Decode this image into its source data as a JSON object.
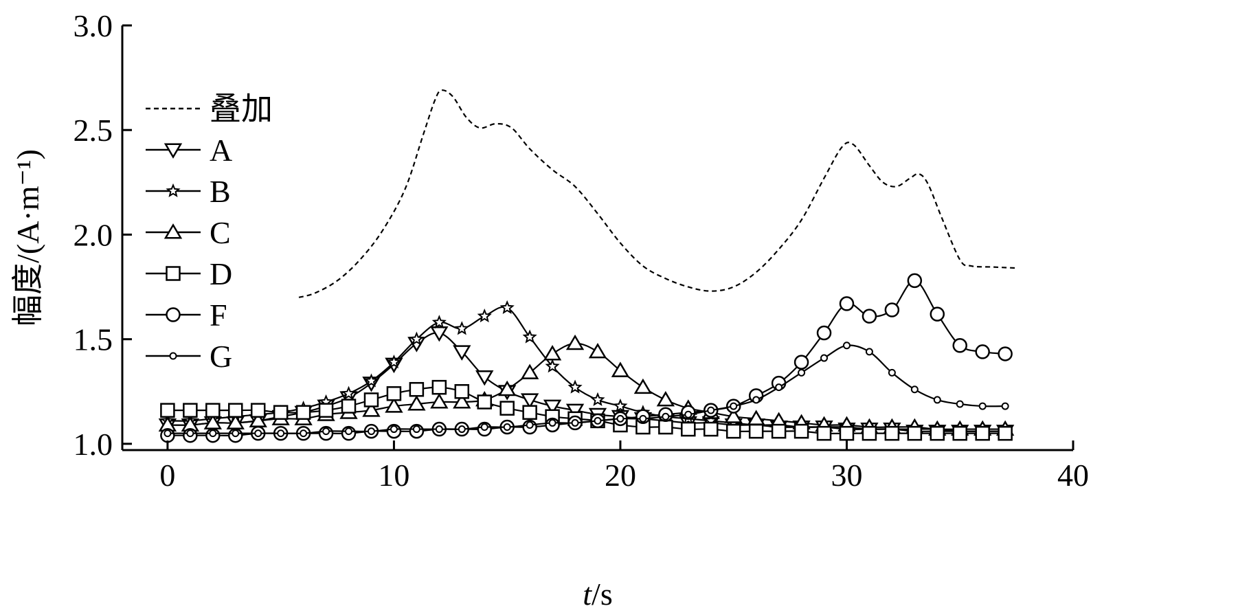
{
  "chart_data": {
    "type": "line",
    "xlabel_italic": "t",
    "xlabel_unit": "/s",
    "ylabel": "幅度/(A·m⁻¹)",
    "xlim": [
      -2,
      40
    ],
    "ylim": [
      0.97,
      3.0
    ],
    "x_ticks": [
      0,
      10,
      20,
      30,
      40
    ],
    "y_ticks": [
      1.0,
      1.5,
      2.0,
      2.5,
      3.0
    ],
    "y_tick_labels": [
      "1.0",
      "1.5",
      "2.0",
      "2.5",
      "3.0"
    ],
    "grid": false,
    "legend_position": "top-left",
    "series": [
      {
        "name": "叠加",
        "marker": "none",
        "dashed": true,
        "points": [
          [
            5.8,
            1.7
          ],
          [
            6.5,
            1.72
          ],
          [
            7.5,
            1.78
          ],
          [
            8.5,
            1.88
          ],
          [
            9.5,
            2.02
          ],
          [
            10.5,
            2.22
          ],
          [
            11.3,
            2.48
          ],
          [
            11.8,
            2.64
          ],
          [
            12.1,
            2.69
          ],
          [
            12.6,
            2.66
          ],
          [
            13.2,
            2.56
          ],
          [
            13.8,
            2.51
          ],
          [
            14.5,
            2.53
          ],
          [
            15.2,
            2.51
          ],
          [
            16,
            2.41
          ],
          [
            17,
            2.31
          ],
          [
            18,
            2.23
          ],
          [
            19,
            2.1
          ],
          [
            20,
            1.96
          ],
          [
            21,
            1.85
          ],
          [
            22,
            1.79
          ],
          [
            23,
            1.75
          ],
          [
            24,
            1.73
          ],
          [
            25,
            1.75
          ],
          [
            26,
            1.82
          ],
          [
            27,
            1.93
          ],
          [
            28,
            2.07
          ],
          [
            29,
            2.27
          ],
          [
            29.8,
            2.42
          ],
          [
            30.3,
            2.43
          ],
          [
            31,
            2.33
          ],
          [
            31.6,
            2.25
          ],
          [
            32.2,
            2.23
          ],
          [
            32.8,
            2.27
          ],
          [
            33.2,
            2.29
          ],
          [
            33.6,
            2.24
          ],
          [
            34.2,
            2.08
          ],
          [
            35,
            1.88
          ],
          [
            35.5,
            1.85
          ],
          [
            36.5,
            1.845
          ],
          [
            37.5,
            1.84
          ]
        ]
      },
      {
        "name": "A",
        "marker": "triangle-down",
        "points": [
          [
            0,
            1.09
          ],
          [
            1,
            1.09
          ],
          [
            2,
            1.1
          ],
          [
            3,
            1.1
          ],
          [
            4,
            1.11
          ],
          [
            5,
            1.13
          ],
          [
            6,
            1.15
          ],
          [
            7,
            1.18
          ],
          [
            8,
            1.22
          ],
          [
            9,
            1.29
          ],
          [
            10,
            1.38
          ],
          [
            11,
            1.48
          ],
          [
            12,
            1.53
          ],
          [
            13,
            1.44
          ],
          [
            14,
            1.32
          ],
          [
            15,
            1.25
          ],
          [
            16,
            1.21
          ],
          [
            17,
            1.18
          ],
          [
            18,
            1.16
          ],
          [
            19,
            1.14
          ],
          [
            20,
            1.13
          ],
          [
            21,
            1.12
          ],
          [
            22,
            1.11
          ],
          [
            23,
            1.1
          ],
          [
            24,
            1.1
          ],
          [
            25,
            1.09
          ],
          [
            26,
            1.09
          ],
          [
            27,
            1.08
          ],
          [
            28,
            1.08
          ],
          [
            29,
            1.08
          ],
          [
            30,
            1.07
          ],
          [
            31,
            1.07
          ],
          [
            32,
            1.07
          ],
          [
            33,
            1.06
          ],
          [
            34,
            1.06
          ],
          [
            35,
            1.06
          ],
          [
            36,
            1.06
          ],
          [
            37,
            1.06
          ]
        ]
      },
      {
        "name": "B",
        "marker": "star",
        "points": [
          [
            0,
            1.11
          ],
          [
            1,
            1.11
          ],
          [
            2,
            1.12
          ],
          [
            3,
            1.13
          ],
          [
            4,
            1.14
          ],
          [
            5,
            1.15
          ],
          [
            6,
            1.17
          ],
          [
            7,
            1.2
          ],
          [
            8,
            1.24
          ],
          [
            9,
            1.3
          ],
          [
            10,
            1.39
          ],
          [
            11,
            1.5
          ],
          [
            12,
            1.58
          ],
          [
            13,
            1.55
          ],
          [
            14,
            1.61
          ],
          [
            15,
            1.65
          ],
          [
            16,
            1.51
          ],
          [
            17,
            1.37
          ],
          [
            18,
            1.27
          ],
          [
            19,
            1.21
          ],
          [
            20,
            1.18
          ],
          [
            21,
            1.15
          ],
          [
            22,
            1.13
          ],
          [
            23,
            1.12
          ],
          [
            24,
            1.11
          ],
          [
            25,
            1.1
          ],
          [
            26,
            1.09
          ],
          [
            27,
            1.09
          ],
          [
            28,
            1.08
          ],
          [
            29,
            1.08
          ],
          [
            30,
            1.08
          ],
          [
            31,
            1.07
          ],
          [
            32,
            1.07
          ],
          [
            33,
            1.07
          ],
          [
            34,
            1.07
          ],
          [
            35,
            1.06
          ],
          [
            36,
            1.06
          ],
          [
            37,
            1.06
          ]
        ]
      },
      {
        "name": "C",
        "marker": "triangle-up",
        "points": [
          [
            0,
            1.09
          ],
          [
            1,
            1.09
          ],
          [
            2,
            1.1
          ],
          [
            3,
            1.1
          ],
          [
            4,
            1.11
          ],
          [
            5,
            1.12
          ],
          [
            6,
            1.12
          ],
          [
            7,
            1.14
          ],
          [
            8,
            1.15
          ],
          [
            9,
            1.16
          ],
          [
            10,
            1.18
          ],
          [
            11,
            1.19
          ],
          [
            12,
            1.2
          ],
          [
            13,
            1.2
          ],
          [
            14,
            1.21
          ],
          [
            15,
            1.26
          ],
          [
            16,
            1.34
          ],
          [
            17,
            1.43
          ],
          [
            18,
            1.48
          ],
          [
            19,
            1.44
          ],
          [
            20,
            1.35
          ],
          [
            21,
            1.27
          ],
          [
            22,
            1.21
          ],
          [
            23,
            1.17
          ],
          [
            24,
            1.15
          ],
          [
            25,
            1.13
          ],
          [
            26,
            1.12
          ],
          [
            27,
            1.11
          ],
          [
            28,
            1.1
          ],
          [
            29,
            1.09
          ],
          [
            30,
            1.09
          ],
          [
            31,
            1.08
          ],
          [
            32,
            1.08
          ],
          [
            33,
            1.08
          ],
          [
            34,
            1.07
          ],
          [
            35,
            1.07
          ],
          [
            36,
            1.07
          ],
          [
            37,
            1.07
          ]
        ]
      },
      {
        "name": "D",
        "marker": "square",
        "points": [
          [
            0,
            1.16
          ],
          [
            1,
            1.16
          ],
          [
            2,
            1.16
          ],
          [
            3,
            1.16
          ],
          [
            4,
            1.16
          ],
          [
            5,
            1.15
          ],
          [
            6,
            1.15
          ],
          [
            7,
            1.16
          ],
          [
            8,
            1.18
          ],
          [
            9,
            1.21
          ],
          [
            10,
            1.24
          ],
          [
            11,
            1.26
          ],
          [
            12,
            1.27
          ],
          [
            13,
            1.25
          ],
          [
            14,
            1.2
          ],
          [
            15,
            1.17
          ],
          [
            16,
            1.15
          ],
          [
            17,
            1.13
          ],
          [
            18,
            1.12
          ],
          [
            19,
            1.11
          ],
          [
            20,
            1.09
          ],
          [
            21,
            1.08
          ],
          [
            22,
            1.08
          ],
          [
            23,
            1.07
          ],
          [
            24,
            1.07
          ],
          [
            25,
            1.06
          ],
          [
            26,
            1.06
          ],
          [
            27,
            1.06
          ],
          [
            28,
            1.06
          ],
          [
            29,
            1.05
          ],
          [
            30,
            1.05
          ],
          [
            31,
            1.05
          ],
          [
            32,
            1.05
          ],
          [
            33,
            1.05
          ],
          [
            34,
            1.05
          ],
          [
            35,
            1.05
          ],
          [
            36,
            1.05
          ],
          [
            37,
            1.05
          ]
        ]
      },
      {
        "name": "F",
        "marker": "circle",
        "points": [
          [
            0,
            1.04
          ],
          [
            1,
            1.04
          ],
          [
            2,
            1.04
          ],
          [
            3,
            1.04
          ],
          [
            4,
            1.05
          ],
          [
            5,
            1.05
          ],
          [
            6,
            1.05
          ],
          [
            7,
            1.05
          ],
          [
            8,
            1.05
          ],
          [
            9,
            1.06
          ],
          [
            10,
            1.06
          ],
          [
            11,
            1.06
          ],
          [
            12,
            1.07
          ],
          [
            13,
            1.07
          ],
          [
            14,
            1.07
          ],
          [
            15,
            1.08
          ],
          [
            16,
            1.08
          ],
          [
            17,
            1.09
          ],
          [
            18,
            1.1
          ],
          [
            19,
            1.11
          ],
          [
            20,
            1.12
          ],
          [
            21,
            1.13
          ],
          [
            22,
            1.14
          ],
          [
            23,
            1.15
          ],
          [
            24,
            1.16
          ],
          [
            25,
            1.18
          ],
          [
            26,
            1.23
          ],
          [
            27,
            1.29
          ],
          [
            28,
            1.39
          ],
          [
            29,
            1.53
          ],
          [
            30,
            1.67
          ],
          [
            31,
            1.61
          ],
          [
            32,
            1.64
          ],
          [
            33,
            1.78
          ],
          [
            34,
            1.62
          ],
          [
            35,
            1.47
          ],
          [
            36,
            1.44
          ],
          [
            37,
            1.43
          ]
        ]
      },
      {
        "name": "G",
        "marker": "small-circle",
        "points": [
          [
            0,
            1.05
          ],
          [
            1,
            1.05
          ],
          [
            2,
            1.05
          ],
          [
            3,
            1.05
          ],
          [
            4,
            1.05
          ],
          [
            5,
            1.05
          ],
          [
            6,
            1.05
          ],
          [
            7,
            1.06
          ],
          [
            8,
            1.06
          ],
          [
            9,
            1.06
          ],
          [
            10,
            1.07
          ],
          [
            11,
            1.07
          ],
          [
            12,
            1.07
          ],
          [
            13,
            1.07
          ],
          [
            14,
            1.08
          ],
          [
            15,
            1.08
          ],
          [
            16,
            1.09
          ],
          [
            17,
            1.1
          ],
          [
            18,
            1.1
          ],
          [
            19,
            1.11
          ],
          [
            20,
            1.12
          ],
          [
            21,
            1.12
          ],
          [
            22,
            1.13
          ],
          [
            23,
            1.14
          ],
          [
            24,
            1.16
          ],
          [
            25,
            1.18
          ],
          [
            26,
            1.21
          ],
          [
            27,
            1.27
          ],
          [
            28,
            1.34
          ],
          [
            29,
            1.41
          ],
          [
            30,
            1.47
          ],
          [
            31,
            1.44
          ],
          [
            32,
            1.34
          ],
          [
            33,
            1.26
          ],
          [
            34,
            1.21
          ],
          [
            35,
            1.19
          ],
          [
            36,
            1.18
          ],
          [
            37,
            1.18
          ]
        ]
      }
    ]
  }
}
